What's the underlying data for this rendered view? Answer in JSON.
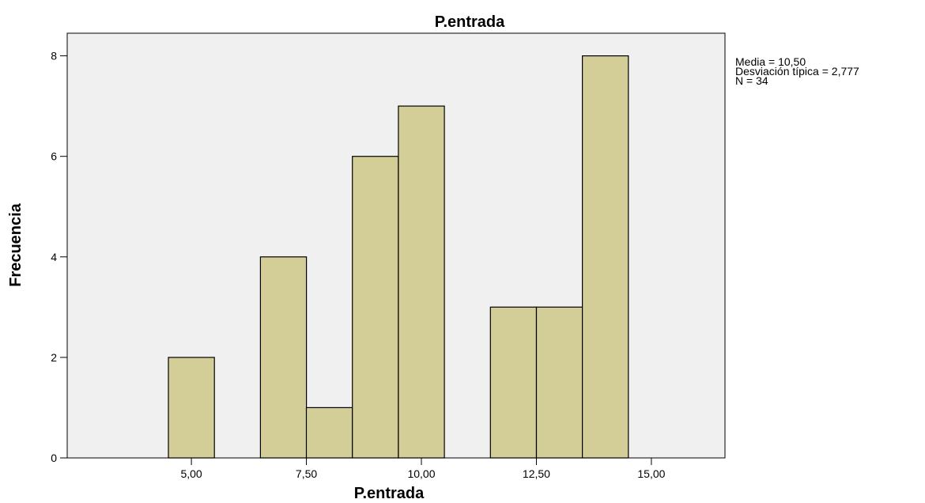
{
  "chart_data": {
    "type": "bar",
    "title": "P.entrada",
    "xlabel": "P.entrada",
    "ylabel": "Frecuencia",
    "bin_width": 1,
    "bins": [
      {
        "start": 4.5,
        "end": 5.5,
        "count": 2
      },
      {
        "start": 6.5,
        "end": 7.5,
        "count": 4
      },
      {
        "start": 7.5,
        "end": 8.5,
        "count": 1
      },
      {
        "start": 8.5,
        "end": 9.5,
        "count": 6
      },
      {
        "start": 9.5,
        "end": 10.5,
        "count": 7
      },
      {
        "start": 11.5,
        "end": 12.5,
        "count": 3
      },
      {
        "start": 12.5,
        "end": 13.5,
        "count": 3
      },
      {
        "start": 13.5,
        "end": 14.5,
        "count": 8
      }
    ],
    "xlim": [
      2.3,
      16.6
    ],
    "ylim": [
      0,
      8.45
    ],
    "xticks": [
      5,
      7.5,
      10,
      12.5,
      15
    ],
    "xtick_labels": [
      "5,00",
      "7,50",
      "10,00",
      "12,50",
      "15,00"
    ],
    "yticks": [
      0,
      2,
      4,
      6,
      8
    ],
    "ytick_labels": [
      "0",
      "2",
      "4",
      "6",
      "8"
    ],
    "colors": {
      "plot_background": "#f0f0f0",
      "bar_fill": "#d3ce97",
      "bar_stroke": "#000000"
    },
    "stats": {
      "mean": "Media = 10,50",
      "sd": "Desviación típica = 2,777",
      "n": "N = 34"
    }
  }
}
